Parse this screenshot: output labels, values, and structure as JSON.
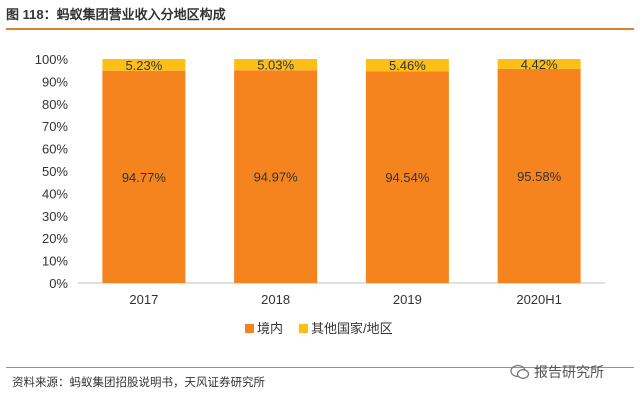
{
  "figure_title": "图 118：蚂蚁集团营业收入分地区构成",
  "source": "资料来源：蚂蚁集团招股说明书，天风证券研究所",
  "watermark": "报告研究所",
  "chart_data": {
    "type": "bar",
    "stacked": true,
    "categories": [
      "2017",
      "2018",
      "2019",
      "2020H1"
    ],
    "series": [
      {
        "name": "境内",
        "values": [
          94.77,
          94.97,
          94.54,
          95.58
        ],
        "labels": [
          "94.77%",
          "94.97%",
          "94.54%",
          "95.58%"
        ],
        "color": "#f5841f"
      },
      {
        "name": "其他国家/地区",
        "values": [
          5.23,
          5.03,
          5.46,
          4.42
        ],
        "labels": [
          "5.23%",
          "5.03%",
          "5.46%",
          "4.42%"
        ],
        "color": "#fcbf17"
      }
    ],
    "yticks": [
      "0%",
      "10%",
      "20%",
      "30%",
      "40%",
      "50%",
      "60%",
      "70%",
      "80%",
      "90%",
      "100%"
    ],
    "ylim": [
      0,
      100
    ],
    "grid": false,
    "legend": "bottom"
  }
}
